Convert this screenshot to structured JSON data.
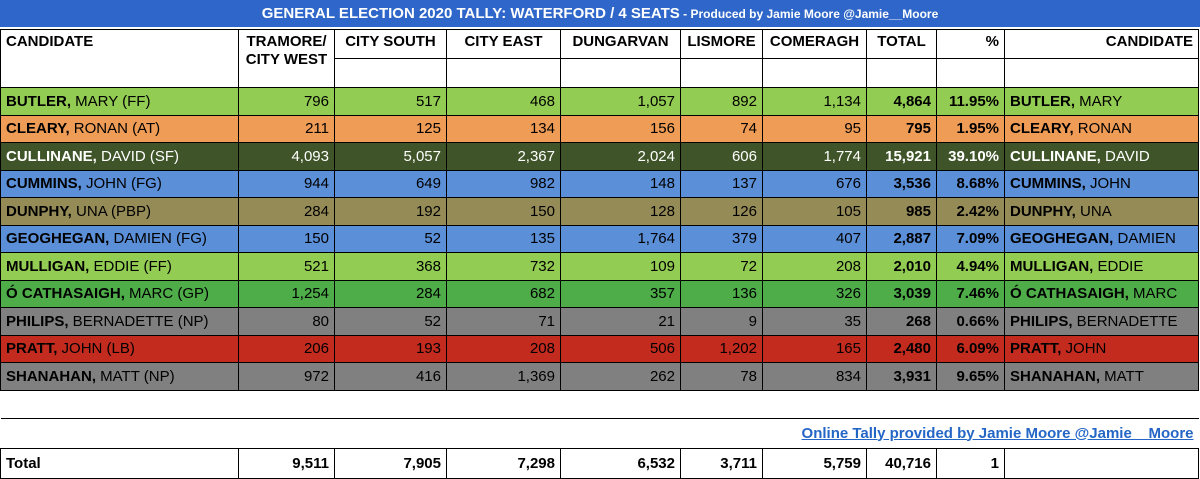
{
  "title": {
    "main": "GENERAL ELECTION 2020 TALLY: WATERFORD / 4 SEATS",
    "sub": " - Produced by Jamie Moore @Jamie__Moore"
  },
  "headers": {
    "candidate": "CANDIDATE",
    "tramore_line1": "TRAMORE/",
    "tramore_line2": "CITY WEST",
    "city_south": "CITY SOUTH",
    "city_east": "CITY EAST",
    "dungarvan": "DUNGARVAN",
    "lismore": "LISMORE",
    "comeragh": "COMERAGH",
    "total": "TOTAL",
    "percent": "%",
    "candidate_right": "CANDIDATE"
  },
  "candidates": [
    {
      "surname": "BUTLER,",
      "rest": " MARY (FF)",
      "tramore": "796",
      "city_south": "517",
      "city_east": "468",
      "dungarvan": "1,057",
      "lismore": "892",
      "comeragh": "1,134",
      "total": "4,864",
      "pct": "11.95%",
      "surname2": "BUTLER,",
      "rest2": " MARY",
      "bg": "#92cc52"
    },
    {
      "surname": "CLEARY,",
      "rest": " RONAN (AT)",
      "tramore": "211",
      "city_south": "125",
      "city_east": "134",
      "dungarvan": "156",
      "lismore": "74",
      "comeragh": "95",
      "total": "795",
      "pct": "1.95%",
      "surname2": "CLEARY,",
      "rest2": " RONAN",
      "bg": "#ef9c56"
    },
    {
      "surname": "CULLINANE,",
      "rest": " DAVID (SF)",
      "tramore": "4,093",
      "city_south": "5,057",
      "city_east": "2,367",
      "dungarvan": "2,024",
      "lismore": "606",
      "comeragh": "1,774",
      "total": "15,921",
      "pct": "39.10%",
      "surname2": "CULLINANE,",
      "rest2": " DAVID",
      "bg": "#3f5428"
    },
    {
      "surname": "CUMMINS,",
      "rest": " JOHN (FG)",
      "tramore": "944",
      "city_south": "649",
      "city_east": "982",
      "dungarvan": "148",
      "lismore": "137",
      "comeragh": "676",
      "total": "3,536",
      "pct": "8.68%",
      "surname2": "CUMMINS,",
      "rest2": " JOHN",
      "bg": "#5b8fd7"
    },
    {
      "surname": "DUNPHY,",
      "rest": " UNA (PBP)",
      "tramore": "284",
      "city_south": "192",
      "city_east": "150",
      "dungarvan": "128",
      "lismore": "126",
      "comeragh": "105",
      "total": "985",
      "pct": "2.42%",
      "surname2": "DUNPHY,",
      "rest2": " UNA",
      "bg": "#958b57"
    },
    {
      "surname": "GEOGHEGAN,",
      "rest": " DAMIEN (FG)",
      "tramore": "150",
      "city_south": "52",
      "city_east": "135",
      "dungarvan": "1,764",
      "lismore": "379",
      "comeragh": "407",
      "total": "2,887",
      "pct": "7.09%",
      "surname2": "GEOGHEGAN,",
      "rest2": " DAMIEN",
      "bg": "#5b8fd7"
    },
    {
      "surname": "MULLIGAN,",
      "rest": " EDDIE (FF)",
      "tramore": "521",
      "city_south": "368",
      "city_east": "732",
      "dungarvan": "109",
      "lismore": "72",
      "comeragh": "208",
      "total": "2,010",
      "pct": "4.94%",
      "surname2": "MULLIGAN,",
      "rest2": " EDDIE",
      "bg": "#92cc52"
    },
    {
      "surname": "Ó CATHASAIGH,",
      "rest": " MARC (GP)",
      "tramore": "1,254",
      "city_south": "284",
      "city_east": "682",
      "dungarvan": "357",
      "lismore": "136",
      "comeragh": "326",
      "total": "3,039",
      "pct": "7.46%",
      "surname2": "Ó CATHASAIGH,",
      "rest2": " MARC",
      "bg": "#4eac49"
    },
    {
      "surname": "PHILIPS,",
      "rest": " BERNADETTE (NP)",
      "tramore": "80",
      "city_south": "52",
      "city_east": "71",
      "dungarvan": "21",
      "lismore": "9",
      "comeragh": "35",
      "total": "268",
      "pct": "0.66%",
      "surname2": "PHILIPS,",
      "rest2": " BERNADETTE",
      "bg": "#808080"
    },
    {
      "surname": "PRATT,",
      "rest": " JOHN (LB)",
      "tramore": "206",
      "city_south": "193",
      "city_east": "208",
      "dungarvan": "506",
      "lismore": "1,202",
      "comeragh": "165",
      "total": "2,480",
      "pct": "6.09%",
      "surname2": "PRATT,",
      "rest2": " JOHN",
      "bg": "#c42b1f"
    },
    {
      "surname": "SHANAHAN,",
      "rest": " MATT (NP)",
      "tramore": "972",
      "city_south": "416",
      "city_east": "1,369",
      "dungarvan": "262",
      "lismore": "78",
      "comeragh": "834",
      "total": "3,931",
      "pct": "9.65%",
      "surname2": "SHANAHAN,",
      "rest2": " MATT",
      "bg": "#808080"
    }
  ],
  "credit": "Online Tally provided by Jamie Moore @Jamie__Moore",
  "totals": {
    "label": "Total",
    "tramore": "9,511",
    "city_south": "7,905",
    "city_east": "7,298",
    "dungarvan": "6,532",
    "lismore": "3,711",
    "comeragh": "5,759",
    "total": "40,716",
    "pct": "1"
  },
  "colors": {
    "title_bar": "#2e67c9",
    "credit_link": "#2466c6",
    "text_on_dark": "#ffffff"
  }
}
